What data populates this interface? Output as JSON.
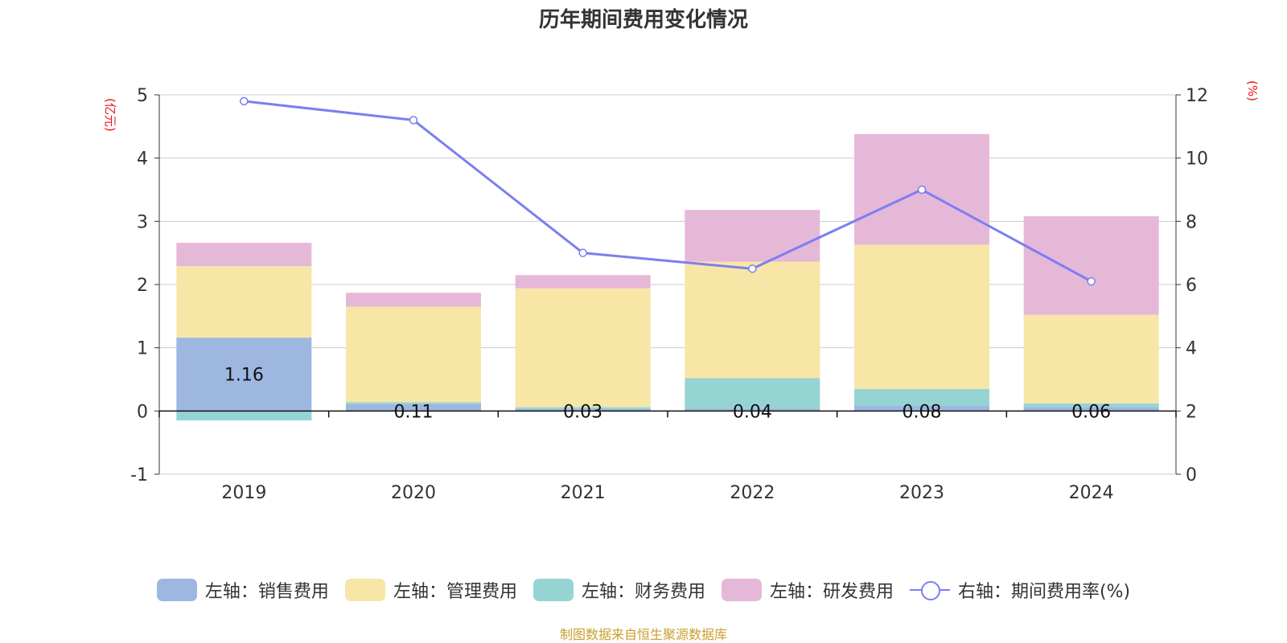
{
  "title": "历年期间费用变化情况",
  "source": "制图数据来自恒生聚源数据库",
  "colors": {
    "sales": "#9db7e0",
    "admin": "#f7e6a6",
    "finance": "#96d4d4",
    "rnd": "#e6b8d8",
    "rate": "#7b7ff0",
    "unit": "#ee1111"
  },
  "legend": [
    {
      "label": "左轴：销售费用",
      "series": "sales"
    },
    {
      "label": "左轴：管理费用",
      "series": "admin"
    },
    {
      "label": "左轴：财务费用",
      "series": "finance"
    },
    {
      "label": "左轴：研发费用",
      "series": "rnd"
    },
    {
      "label": "右轴：期间费用率(%)",
      "series": "rate"
    }
  ],
  "chart_data": {
    "type": "bar",
    "stacked": true,
    "title": "历年期间费用变化情况",
    "categories": [
      "2019",
      "2020",
      "2021",
      "2022",
      "2023",
      "2024"
    ],
    "left_axis": {
      "unit": "(亿元)",
      "range": [
        -1,
        5
      ],
      "ticks": [
        "5",
        "4",
        "3",
        "2",
        "1",
        "0",
        "-1"
      ]
    },
    "right_axis": {
      "unit": "(%)",
      "range": [
        0,
        12
      ],
      "ticks": [
        "12",
        "10",
        "8",
        "6",
        "4",
        "2",
        "0"
      ]
    },
    "series": [
      {
        "name": "左轴：销售费用",
        "key": "sales",
        "axis": "left",
        "values": [
          1.16,
          0.11,
          0.03,
          0.04,
          0.08,
          0.06
        ],
        "labels": [
          "1.16",
          "0.11",
          "0.03",
          "0.04",
          "0.08",
          "0.06"
        ]
      },
      {
        "name": "左轴：财务费用",
        "key": "finance",
        "axis": "left",
        "values": [
          -0.15,
          0.03,
          0.03,
          0.48,
          0.27,
          0.06
        ]
      },
      {
        "name": "左轴：管理费用",
        "key": "admin",
        "axis": "left",
        "values": [
          1.13,
          1.51,
          1.88,
          1.84,
          2.28,
          1.4
        ]
      },
      {
        "name": "左轴：研发费用",
        "key": "rnd",
        "axis": "left",
        "values": [
          0.37,
          0.22,
          0.21,
          0.82,
          1.75,
          1.56
        ]
      },
      {
        "name": "右轴：期间费用率(%)",
        "key": "rate",
        "axis": "right",
        "type": "line",
        "values": [
          11.8,
          11.2,
          7.0,
          6.5,
          9.0,
          6.1
        ]
      }
    ],
    "grid": true,
    "legend_position": "bottom"
  }
}
